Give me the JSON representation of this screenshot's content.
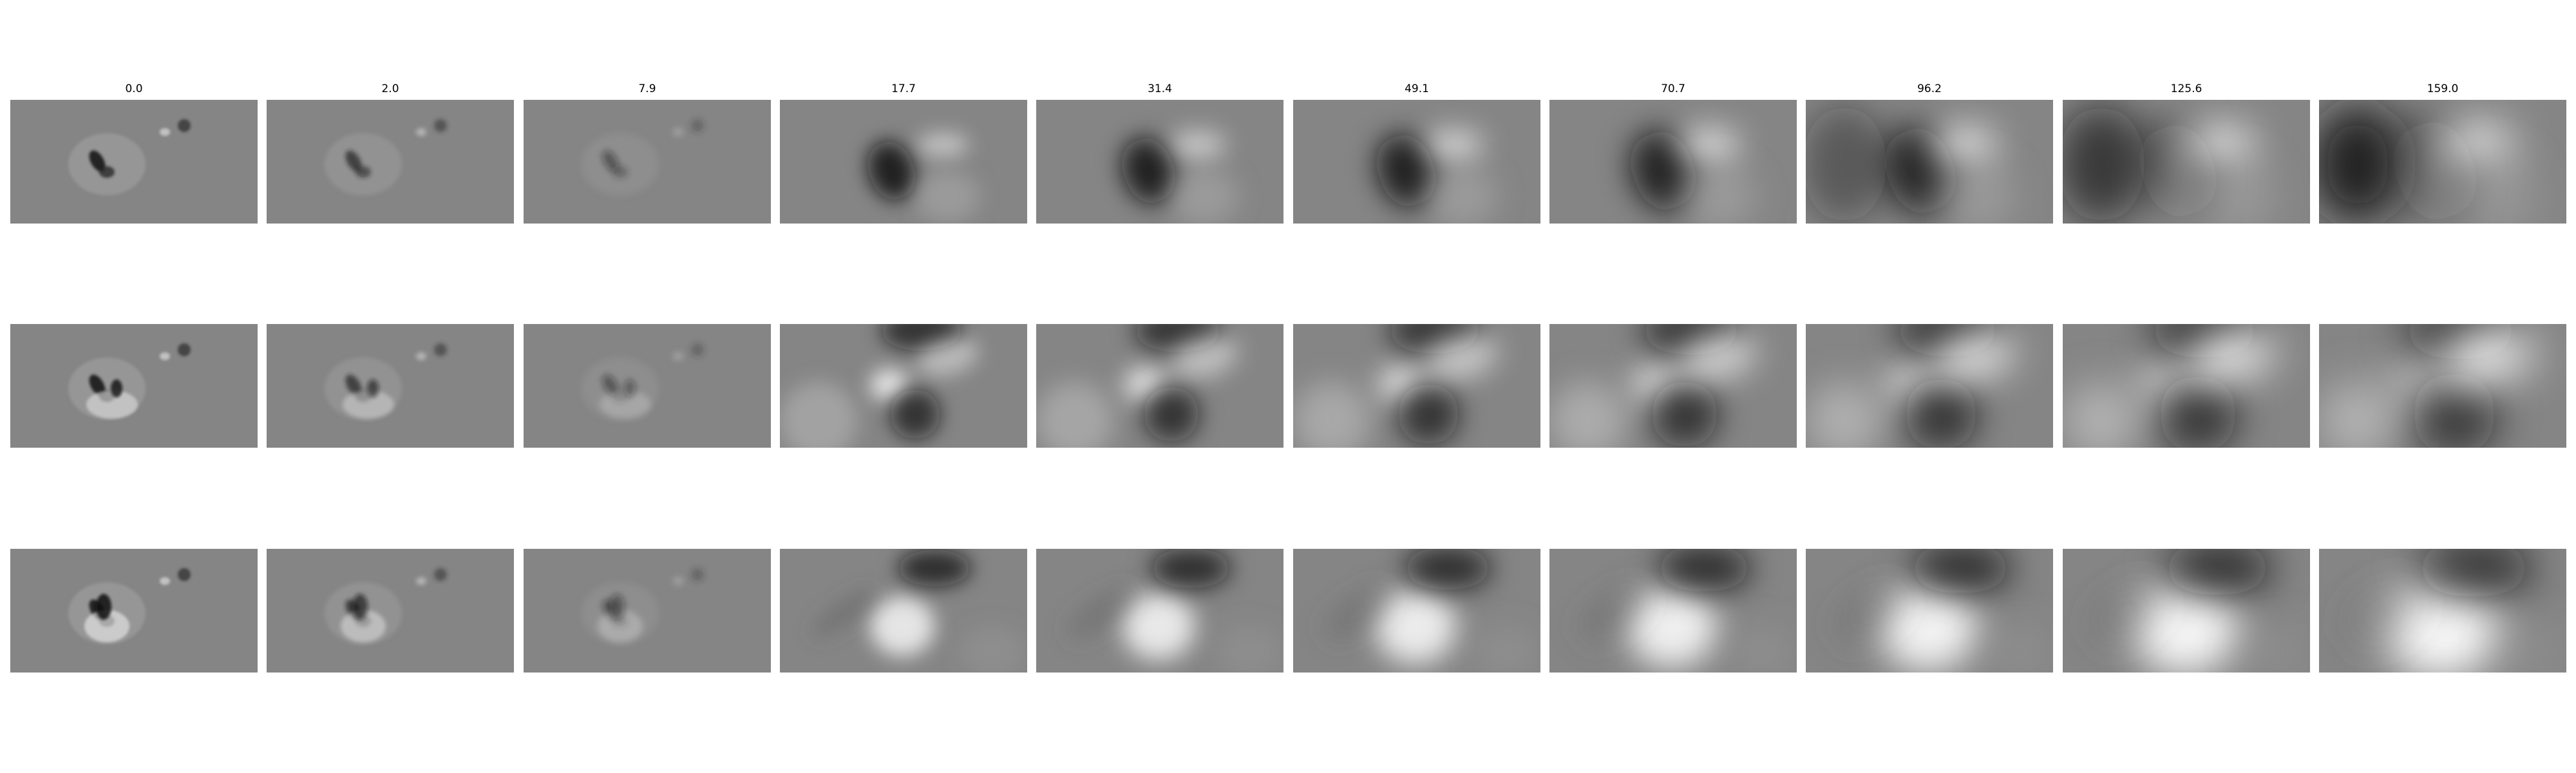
{
  "figure": {
    "column_titles": [
      "0.0",
      "2.0",
      "7.9",
      "17.7",
      "31.4",
      "49.1",
      "70.7",
      "96.2",
      "125.6",
      "159.0"
    ],
    "rows": 3,
    "colormap": "gray",
    "background": "#ffffff",
    "panel_base_color": "#858585"
  }
}
